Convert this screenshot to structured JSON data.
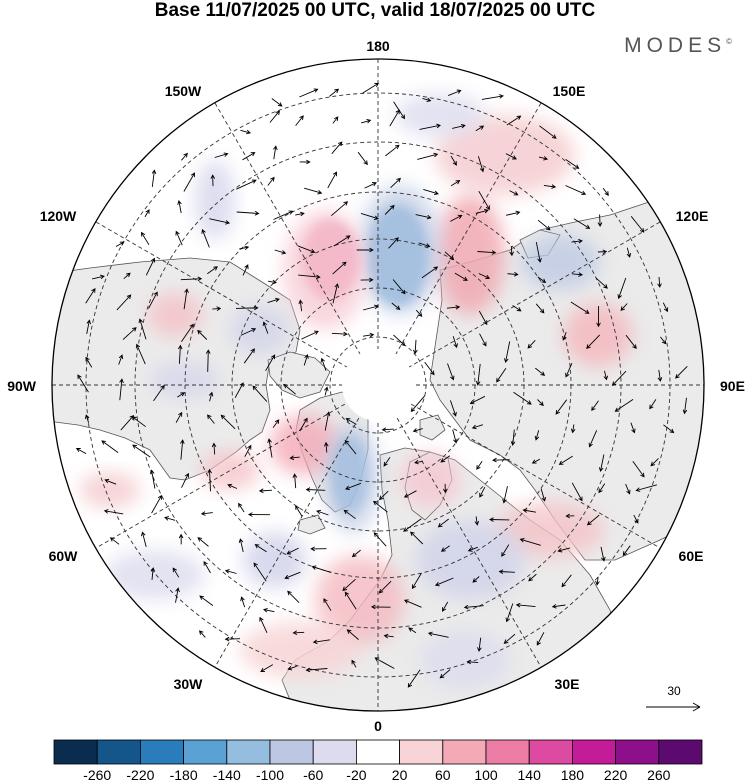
{
  "title": "Base 11/07/2025 00 UTC, valid 18/07/2025 00 UTC",
  "brand": {
    "name": "MODES",
    "mark": "©"
  },
  "map": {
    "projection": "north-polar-stereographic",
    "longitude_labels": [
      "180",
      "150E",
      "120E",
      "90E",
      "60E",
      "30E",
      "0",
      "30W",
      "60W",
      "90W",
      "120W",
      "150W"
    ],
    "reference_vector": {
      "label": "30"
    }
  },
  "colorbar": {
    "tick_labels": [
      "-260",
      "-220",
      "-180",
      "-140",
      "-100",
      "-60",
      "-20",
      "20",
      "60",
      "100",
      "140",
      "180",
      "220",
      "260"
    ],
    "colors": [
      "#0a2c4f",
      "#14558a",
      "#2a7dbb",
      "#5aa2d4",
      "#94bde0",
      "#bcc8e3",
      "#dcdcee",
      "#ffffff",
      "#f8d4d6",
      "#f4a9b6",
      "#ec7ea6",
      "#dc4aa1",
      "#c41c98",
      "#8d0f8a",
      "#5c0a70"
    ]
  }
}
